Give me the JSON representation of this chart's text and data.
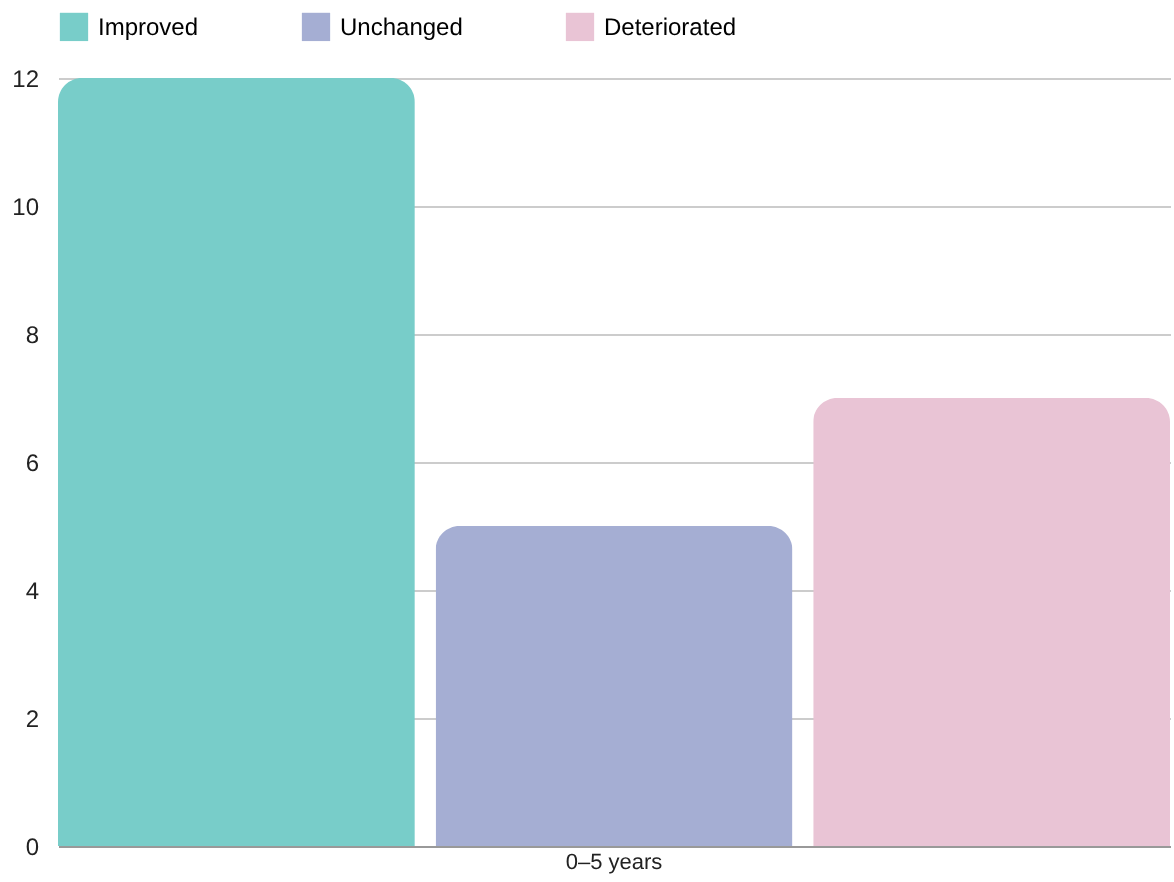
{
  "chart_data": {
    "type": "bar",
    "categories": [
      "0–5 years"
    ],
    "series": [
      {
        "name": "Improved",
        "color": "#78cdc9",
        "values": [
          12
        ]
      },
      {
        "name": "Unchanged",
        "color": "#a5aed3",
        "values": [
          5
        ]
      },
      {
        "name": "Deteriorated",
        "color": "#e9c4d5",
        "values": [
          7
        ]
      }
    ],
    "ylim": [
      0,
      12
    ],
    "yticks": [
      0,
      2,
      4,
      6,
      8,
      10,
      12
    ],
    "grid": "y",
    "legend": "top"
  }
}
